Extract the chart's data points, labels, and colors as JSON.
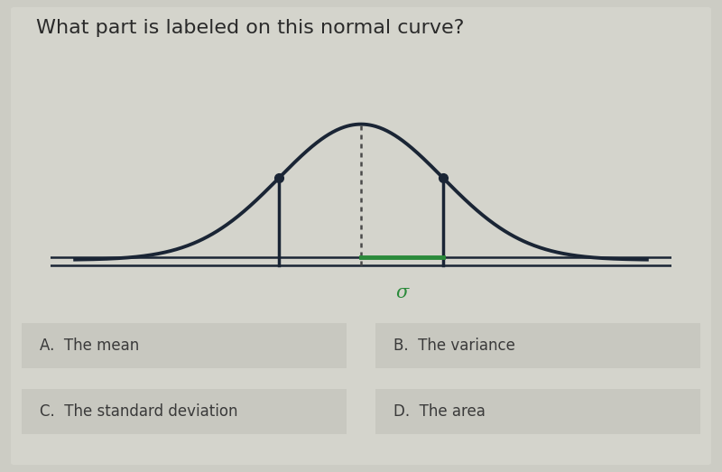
{
  "title": "What part is labeled on this normal curve?",
  "title_fontsize": 16,
  "title_color": "#2a2a2a",
  "bg_color": "#ccccc4",
  "card_facecolor": "#d4d4cc",
  "curve_color": "#1a2535",
  "curve_lw": 2.8,
  "baseline_color": "#1a2535",
  "baseline_lw": 1.8,
  "solid_line_color": "#1a2535",
  "dotted_line_color": "#4a4a4a",
  "sigma_color": "#2a8a3a",
  "sigma_label": "σ",
  "mean": 0.0,
  "sigma": 1.0,
  "answers": [
    "A.  The mean",
    "B.  The variance",
    "C.  The standard deviation",
    "D.  The area"
  ],
  "answer_font_color": "#3a3a3a",
  "answer_fontsize": 12,
  "answer_box_color": "#c8c8c0",
  "answer_box_edge": "#b8b8b0"
}
